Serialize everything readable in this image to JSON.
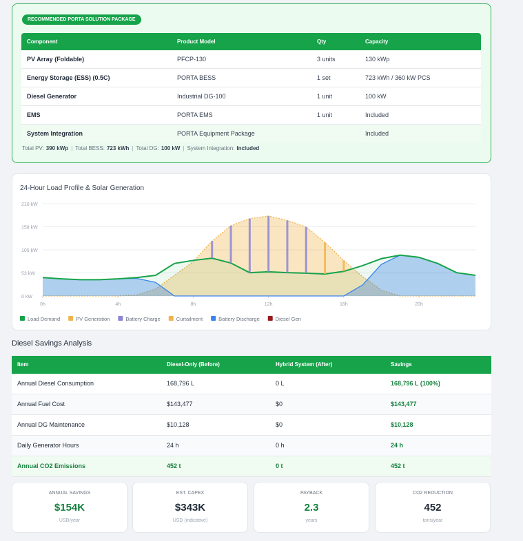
{
  "package": {
    "badge": "RECOMMENDED PORTA SOLUTION PACKAGE",
    "headers": [
      "Component",
      "Product Model",
      "Qty",
      "Capacity"
    ],
    "rows": [
      [
        "PV Array (Foldable)",
        "PFCP-130",
        "3 units",
        "130 kWp"
      ],
      [
        "Energy Storage (ESS) (0.5C)",
        "PORTA BESS",
        "1 set",
        "723 kWh / 360 kW PCS"
      ],
      [
        "Diesel Generator",
        "Industrial DG-100",
        "1 unit",
        "100 kW"
      ],
      [
        "EMS",
        "PORTA EMS",
        "1 unit",
        "Included"
      ],
      [
        "System Integration",
        "PORTA Equipment Package",
        null,
        "Included"
      ]
    ],
    "summary": [
      {
        "label": "Total PV:",
        "value": "390 kWp"
      },
      {
        "label": "Total BESS:",
        "value": "723 kWh"
      },
      {
        "label": "Total DG:",
        "value": "100 kW"
      },
      {
        "label": "System Integration:",
        "value": "Included"
      }
    ]
  },
  "chart": {
    "type": "area",
    "title": "24-Hour Load Profile & Solar Generation",
    "x": [
      0,
      1,
      2,
      3,
      4,
      5,
      6,
      7,
      8,
      9,
      10,
      11,
      12,
      13,
      14,
      15,
      16,
      17,
      18,
      19,
      20,
      21,
      22,
      23
    ],
    "xlim": [
      0,
      23
    ],
    "xticks": [
      {
        "value": 0,
        "label": "0h"
      },
      {
        "value": 4,
        "label": "4h"
      },
      {
        "value": 8,
        "label": "8h"
      },
      {
        "value": 12,
        "label": "12h"
      },
      {
        "value": 16,
        "label": "16h"
      },
      {
        "value": 20,
        "label": "20h"
      }
    ],
    "ylim": [
      0,
      210
    ],
    "yticks": [
      {
        "value": 0,
        "label": "0 kW"
      },
      {
        "value": 52.5,
        "label": "53 kW"
      },
      {
        "value": 105,
        "label": "105 kW"
      },
      {
        "value": 157.5,
        "label": "158 kW"
      },
      {
        "value": 210,
        "label": "210 kW"
      }
    ],
    "grid": true,
    "series": [
      {
        "name": "Load Demand",
        "color": "#16a34a",
        "kind": "line",
        "values": [
          42,
          39,
          37,
          37,
          39,
          42,
          47,
          74,
          81,
          86,
          75,
          53,
          55,
          53,
          52,
          50,
          56,
          69,
          85,
          93,
          88,
          74,
          53,
          47
        ]
      },
      {
        "name": "PV Generation",
        "color": "#f0b44c",
        "kind": "area",
        "values": [
          0,
          0,
          0,
          0,
          0,
          2,
          16,
          47,
          78,
          125,
          160,
          176,
          182,
          172,
          157,
          122,
          81,
          44,
          13,
          0,
          0,
          0,
          0,
          0
        ]
      },
      {
        "name": "Battery Charge",
        "color": "#8b86d6",
        "kind": "bar",
        "values": [
          0,
          0,
          0,
          0,
          0,
          0,
          0,
          0,
          0,
          39,
          85,
          123,
          127,
          119,
          105,
          0,
          0,
          0,
          0,
          0,
          0,
          0,
          0,
          0
        ]
      },
      {
        "name": "Curtailment",
        "color": "#f0b44c",
        "kind": "bar",
        "values": [
          0,
          0,
          0,
          0,
          0,
          0,
          0,
          0,
          0,
          0,
          0,
          0,
          0,
          0,
          0,
          72,
          25,
          0,
          0,
          0,
          0,
          0,
          0,
          0
        ]
      },
      {
        "name": "Battery Discharge",
        "color": "#3b82f6",
        "kind": "area",
        "values": [
          42,
          39,
          37,
          37,
          39,
          40,
          31,
          0,
          0,
          0,
          0,
          0,
          0,
          0,
          0,
          0,
          0,
          25,
          72,
          93,
          88,
          74,
          53,
          47
        ]
      },
      {
        "name": "Diesel Gen",
        "color": "#991b1b",
        "kind": "bar",
        "values": [
          0,
          0,
          0,
          0,
          0,
          0,
          0,
          0,
          0,
          0,
          0,
          0,
          0,
          0,
          0,
          0,
          0,
          0,
          0,
          0,
          0,
          0,
          0,
          0
        ]
      }
    ]
  },
  "savings": {
    "title": "Diesel Savings Analysis",
    "headers": [
      "Item",
      "Diesel-Only (Before)",
      "Hybrid System (After)",
      "Savings"
    ],
    "rows": [
      [
        "Annual Diesel Consumption",
        "168,796 L",
        "0 L",
        "168,796 L (100%)"
      ],
      [
        "Annual Fuel Cost",
        "$143,477",
        "$0",
        "$143,477"
      ],
      [
        "Annual DG Maintenance",
        "$10,128",
        "$0",
        "$10,128"
      ],
      [
        "Daily Generator Hours",
        "24 h",
        "0 h",
        "24 h"
      ],
      [
        "Annual CO2 Emissions",
        "452 t",
        "0 t",
        "452 t"
      ]
    ]
  },
  "kpis": [
    {
      "label": "ANNUAL SAVINGS",
      "value": "$154K",
      "unit": "USD/year",
      "color": "#15803d"
    },
    {
      "label": "EST. CAPEX",
      "value": "$343K",
      "unit": "USD (indicative)",
      "color": "#1f2937"
    },
    {
      "label": "PAYBACK",
      "value": "2.3",
      "unit": "years",
      "color": "#15803d"
    },
    {
      "label": "CO2 REDUCTION",
      "value": "452",
      "unit": "tons/year",
      "color": "#1f2937"
    }
  ]
}
